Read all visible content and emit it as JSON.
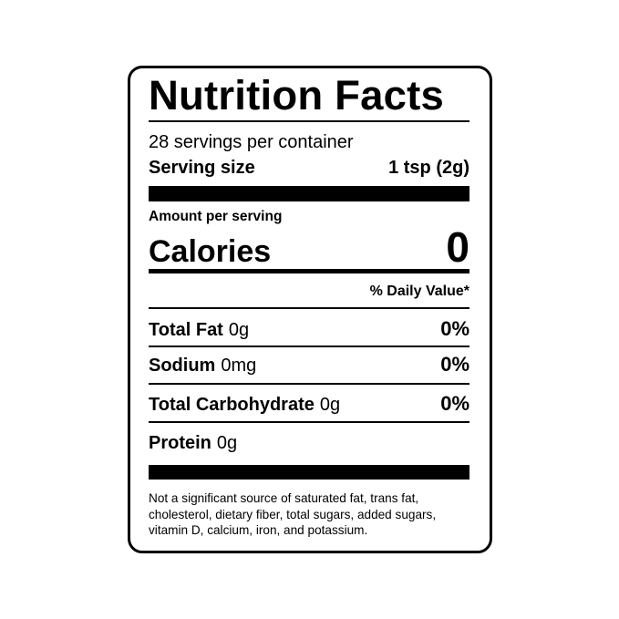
{
  "title": "Nutrition Facts",
  "servings_per_container": "28 servings per container",
  "serving_size": {
    "label": "Serving size",
    "value": "1 tsp (2g)"
  },
  "amount_per_serving": "Amount per serving",
  "calories": {
    "label": "Calories",
    "value": "0"
  },
  "daily_value_header": "% Daily Value*",
  "nutrients": [
    {
      "name": "Total Fat",
      "amount": "0g",
      "dv": "0%"
    },
    {
      "name": "Sodium",
      "amount": "0mg",
      "dv": "0%"
    },
    {
      "name": "Total Carbohydrate",
      "amount": "0g",
      "dv": "0%"
    },
    {
      "name": "Protein",
      "amount": "0g",
      "dv": ""
    }
  ],
  "footnote": "Not a significant source of saturated fat, trans fat, cholesterol, dietary fiber, total sugars, added sugars, vitamin D, calcium, iron, and potassium."
}
